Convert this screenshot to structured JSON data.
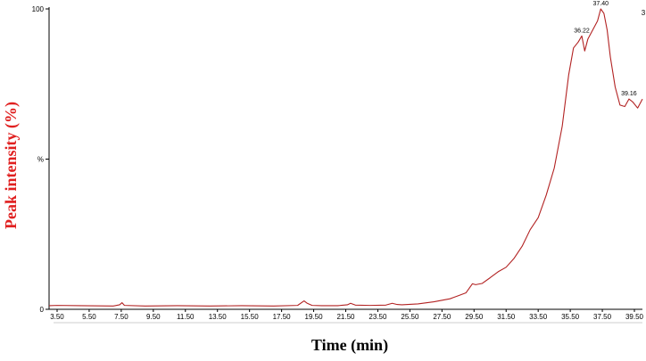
{
  "chart_data": {
    "type": "line",
    "xlabel": "Time (min)",
    "ylabel": "Peak intensity (%)",
    "xlim": [
      3.0,
      40.0
    ],
    "ylim": [
      0,
      100
    ],
    "x_ticks": [
      "3.50",
      "5.50",
      "7.50",
      "9.50",
      "11.50",
      "13.50",
      "15.50",
      "17.50",
      "19.50",
      "21.50",
      "23.50",
      "25.50",
      "27.50",
      "29.50",
      "31.50",
      "33.50",
      "35.50",
      "37.50",
      "39.50"
    ],
    "y_ticks": [
      {
        "value": 0,
        "label": "0"
      },
      {
        "value": 50,
        "label": "%"
      },
      {
        "value": 100,
        "label": "100"
      }
    ],
    "right_edge_label": "3",
    "series": [
      {
        "color": "#b22222",
        "x": [
          3.0,
          3.5,
          5.0,
          7.0,
          7.4,
          7.55,
          7.7,
          9.0,
          11.0,
          13.0,
          15.0,
          17.0,
          18.5,
          18.9,
          19.1,
          19.4,
          20.0,
          21.0,
          21.6,
          21.8,
          22.1,
          23.0,
          24.0,
          24.4,
          24.7,
          25.0,
          26.0,
          27.0,
          28.0,
          28.5,
          29.0,
          29.4,
          29.6,
          30.0,
          30.5,
          31.0,
          31.5,
          32.0,
          32.5,
          33.0,
          33.5,
          34.0,
          34.5,
          35.0,
          35.4,
          35.7,
          36.0,
          36.22,
          36.4,
          36.6,
          36.8,
          37.0,
          37.2,
          37.4,
          37.6,
          37.8,
          38.0,
          38.3,
          38.6,
          38.9,
          39.16,
          39.4,
          39.7,
          40.0
        ],
        "y": [
          1.2,
          1.3,
          1.2,
          1.1,
          1.5,
          2.2,
          1.3,
          1.1,
          1.2,
          1.1,
          1.2,
          1.1,
          1.3,
          2.8,
          2.0,
          1.3,
          1.2,
          1.2,
          1.5,
          2.0,
          1.4,
          1.3,
          1.4,
          2.0,
          1.6,
          1.5,
          1.8,
          2.5,
          3.5,
          4.5,
          5.5,
          8.5,
          8.2,
          8.6,
          10.5,
          12.5,
          14.0,
          17.0,
          21.0,
          26.5,
          30.5,
          38.0,
          47.0,
          61.0,
          78.0,
          87.0,
          89.0,
          91.0,
          86.0,
          90.0,
          92.0,
          94.0,
          96.0,
          100.0,
          98.5,
          93.0,
          84.0,
          74.0,
          68.0,
          67.5,
          70.0,
          69.0,
          67.0,
          70.0
        ]
      }
    ],
    "annotations": [
      {
        "x": 36.22,
        "y": 91.0,
        "label": "36.22"
      },
      {
        "x": 37.4,
        "y": 100.0,
        "label": "37.40"
      },
      {
        "x": 39.16,
        "y": 70.0,
        "label": "39.16"
      }
    ]
  }
}
